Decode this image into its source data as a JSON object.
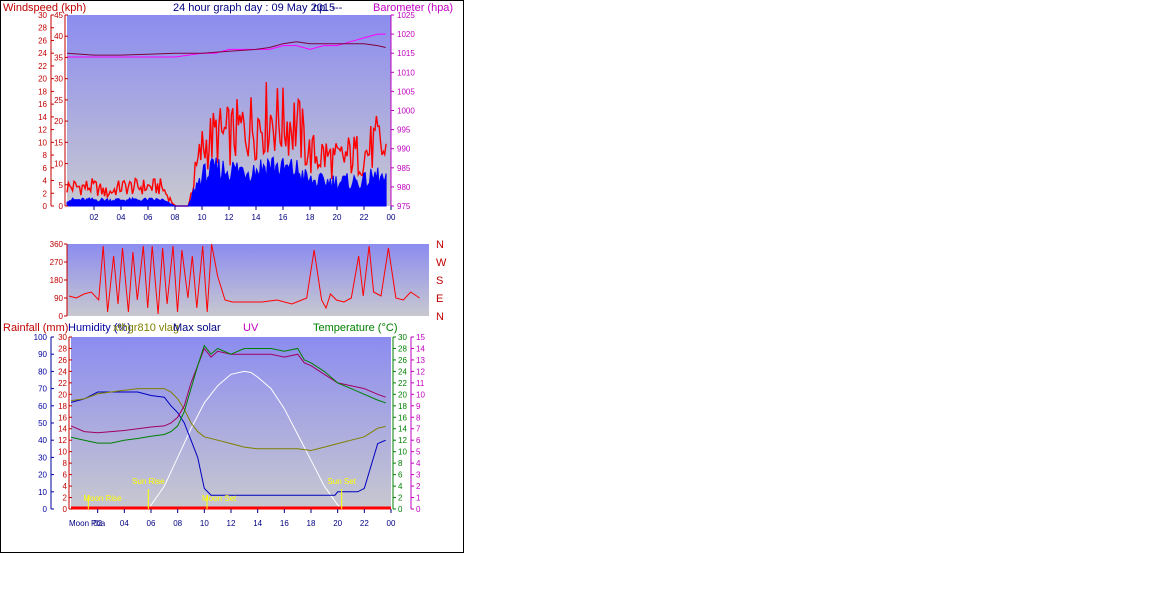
{
  "chart_data": [
    {
      "type": "line",
      "title": "24 hour graph day : 09 May 2015",
      "title_suffix": "np. ---",
      "left_axis_label": "Windspeed (kph)",
      "right_axis_label": "Barometer (hpa)",
      "windspeed_inner_ticks": [
        "30",
        "28",
        "26",
        "24",
        "22",
        "20",
        "18",
        "16",
        "14",
        "12",
        "10",
        "8",
        "6",
        "4",
        "2",
        "0"
      ],
      "windspeed_outer_ticks": [
        "45",
        "40",
        "35",
        "30",
        "25",
        "20",
        "15",
        "10",
        "5",
        "0"
      ],
      "barometer_ticks": [
        "1025",
        "1020",
        "1015",
        "1010",
        "1005",
        "1000",
        "995",
        "990",
        "985",
        "980",
        "975"
      ],
      "x_ticks": [
        "02",
        "04",
        "06",
        "08",
        "10",
        "12",
        "14",
        "16",
        "18",
        "20",
        "22",
        "00"
      ],
      "xlim": [
        0,
        24
      ],
      "ylim_windspeed": [
        0,
        30
      ],
      "ylim_barometer": [
        975,
        1025
      ],
      "colors": {
        "gust": "#ff0000",
        "average": "#0000ff",
        "barometer": "#ff00ff",
        "barometer_trend": "#800040",
        "windaxis": "#c00000",
        "baroaxis": "#c000c0",
        "bg_top": "#8c8cf0",
        "bg_bottom": "#c8c8c8"
      },
      "series": [
        {
          "name": "Gust",
          "values_x": [
            0,
            1,
            2,
            3,
            4,
            5,
            6,
            7,
            8,
            9,
            9.5,
            10,
            11,
            12,
            13,
            14,
            15,
            16,
            17,
            18,
            19,
            20,
            21,
            22,
            23,
            23.6
          ],
          "values": [
            3,
            3,
            3,
            2,
            3,
            3,
            3,
            3,
            0,
            0,
            5,
            9,
            11,
            11,
            12,
            13,
            14,
            13,
            13,
            8,
            8,
            7,
            8,
            8,
            10,
            8
          ]
        },
        {
          "name": "Average",
          "values_x": [
            0,
            1,
            2,
            3,
            4,
            5,
            6,
            7,
            8,
            9,
            9.5,
            10,
            11,
            12,
            13,
            14,
            15,
            16,
            17,
            18,
            19,
            20,
            21,
            22,
            23,
            23.6
          ],
          "values": [
            1,
            1,
            1,
            1,
            1,
            1,
            1,
            1,
            0,
            0,
            3,
            5,
            6,
            6,
            6,
            6,
            7,
            6,
            6,
            4,
            4,
            4,
            4,
            4,
            5,
            4
          ]
        },
        {
          "name": "Barometer",
          "values_x": [
            0,
            2,
            4,
            6,
            8,
            10,
            11,
            12,
            13,
            14,
            15,
            16,
            17,
            18,
            19,
            20,
            21,
            22,
            23,
            23.6
          ],
          "values": [
            1014,
            1014,
            1014,
            1014,
            1014,
            1015,
            1015,
            1016,
            1016,
            1016,
            1016,
            1017,
            1017,
            1016,
            1017,
            1017,
            1018,
            1019,
            1020,
            1020
          ]
        },
        {
          "name": "Barometer trend",
          "values_x": [
            0,
            2,
            4,
            6,
            8,
            10,
            12,
            14,
            15,
            16,
            17,
            18,
            19,
            20,
            21,
            22,
            23,
            23.6
          ],
          "values": [
            1015,
            1014.5,
            1014.5,
            1014.7,
            1015,
            1015,
            1015.5,
            1016,
            1016.5,
            1017.5,
            1018,
            1017.5,
            1017.5,
            1017.5,
            1017.5,
            1017.5,
            1017,
            1016.5
          ]
        }
      ]
    },
    {
      "type": "line",
      "y_ticks": [
        "360",
        "270",
        "180",
        "90",
        "0"
      ],
      "compass_labels": [
        "N",
        "W",
        "S",
        "E",
        "N"
      ],
      "ylim": [
        0,
        360
      ],
      "xlim": [
        0,
        24
      ],
      "colors": {
        "direction": "#ff0000",
        "bg_top": "#8c8cf0",
        "bg_bottom": "#c8c8c8"
      },
      "series": [
        {
          "name": "Wind direction",
          "values_x": [
            0,
            0.5,
            1,
            1.5,
            2,
            2.3,
            2.6,
            3,
            3.3,
            3.6,
            4,
            4.3,
            4.6,
            5,
            5.3,
            5.6,
            6,
            6.3,
            6.6,
            7,
            7.3,
            7.6,
            8,
            8.3,
            8.6,
            9,
            9.3,
            9.6,
            10,
            10.5,
            11,
            12,
            13,
            14,
            15,
            16,
            16.5,
            17,
            17.3,
            17.6,
            18,
            18.5,
            19,
            19.5,
            19.8,
            20.2,
            20.5,
            21,
            21.5,
            22,
            22.5,
            23,
            23.6
          ],
          "values": [
            100,
            90,
            110,
            120,
            80,
            350,
            20,
            300,
            60,
            340,
            20,
            320,
            80,
            350,
            40,
            350,
            10,
            340,
            60,
            350,
            20,
            330,
            90,
            300,
            40,
            350,
            20,
            360,
            200,
            80,
            70,
            70,
            70,
            80,
            60,
            90,
            330,
            80,
            40,
            110,
            80,
            70,
            90,
            300,
            100,
            350,
            120,
            100,
            340,
            90,
            80,
            120,
            90
          ]
        }
      ]
    },
    {
      "type": "line",
      "labels": {
        "rainfall": "Rainfall (mm)",
        "humidity": "Humidity (%)",
        "extra": "xthgr810 vlag",
        "solar": "Max solar",
        "uv": "UV",
        "temperature": "Temperature (°C)"
      },
      "rainfall_ticks": [
        "30",
        "28",
        "26",
        "24",
        "22",
        "20",
        "18",
        "16",
        "14",
        "12",
        "10",
        "8",
        "6",
        "4",
        "2",
        "0"
      ],
      "humidity_ticks": [
        "100",
        "90",
        "80",
        "70",
        "60",
        "50",
        "40",
        "30",
        "20",
        "10",
        "0"
      ],
      "temperature_ticks": [
        "30",
        "28",
        "26",
        "24",
        "22",
        "20",
        "18",
        "16",
        "14",
        "12",
        "10",
        "8",
        "6",
        "4",
        "2",
        "0"
      ],
      "uv_ticks": [
        "15",
        "14",
        "13",
        "12",
        "11",
        "10",
        "9",
        "8",
        "7",
        "6",
        "5",
        "4",
        "3",
        "2",
        "1",
        "0"
      ],
      "x_ticks": [
        "02",
        "04",
        "06",
        "08",
        "10",
        "12",
        "14",
        "16",
        "18",
        "20",
        "22",
        "00"
      ],
      "markers": [
        {
          "label": "Moon Rise",
          "x": 1.3
        },
        {
          "label": "Moon Set",
          "x": 10.2
        },
        {
          "label": "Sun Rise",
          "x": 5.8
        },
        {
          "label": "Sun Set",
          "x": 20.3
        }
      ],
      "moon_row_labels": [
        "Moon",
        "Pha"
      ],
      "xlim": [
        0,
        24
      ],
      "ylim_temperature": [
        0,
        30
      ],
      "ylim_humidity": [
        0,
        100
      ],
      "colors": {
        "humidity": "#0000c0",
        "extra": "#808000",
        "temperature": "#008000",
        "second_temp": "#a00060",
        "solar": "#ffffff",
        "rain": "#ff0000",
        "marker": "#ffff00",
        "humidityaxis": "#0000a0",
        "rainaxis": "#c00000",
        "tempaxis": "#008000",
        "uvaxis": "#c000c0"
      },
      "series": [
        {
          "name": "Humidity",
          "values_x": [
            0,
            1,
            2,
            3,
            4,
            5,
            6,
            7,
            7.5,
            8,
            8.5,
            9,
            9.5,
            10,
            10.5,
            11,
            12,
            13,
            14,
            15,
            16,
            17,
            18,
            19,
            19.8,
            20,
            21,
            21.5,
            22,
            23,
            23.6
          ],
          "values": [
            62,
            64,
            68,
            68,
            68,
            68,
            66,
            65,
            60,
            56,
            50,
            40,
            30,
            12,
            8,
            8,
            8,
            8,
            8,
            8,
            8,
            8,
            8,
            8,
            8,
            10,
            10,
            10,
            12,
            38,
            40
          ]
        },
        {
          "name": "xthgr810 vlag",
          "values_x": [
            0,
            1,
            2,
            3,
            4,
            5,
            6,
            7,
            7.5,
            8,
            8.5,
            9,
            9.5,
            10,
            11,
            12,
            13,
            14,
            15,
            16,
            17,
            18,
            19,
            20,
            21,
            22,
            23,
            23.6
          ],
          "values": [
            63,
            64,
            67,
            68,
            69,
            70,
            70,
            70,
            68,
            64,
            58,
            50,
            45,
            42,
            40,
            38,
            36,
            35,
            35,
            35,
            35,
            34,
            36,
            38,
            40,
            42,
            47,
            48
          ]
        },
        {
          "name": "Temperature",
          "values_x": [
            0,
            1,
            2,
            3,
            4,
            5,
            6,
            7,
            7.5,
            8,
            8.5,
            9,
            9.5,
            10,
            10.5,
            11,
            12,
            13,
            14,
            15,
            16,
            17,
            17.5,
            18,
            19,
            20,
            21,
            22,
            23,
            23.6
          ],
          "values": [
            12.5,
            12,
            11.5,
            11.5,
            12,
            12.3,
            12.7,
            13,
            13.5,
            14.5,
            17,
            21,
            25,
            28.5,
            27,
            28,
            27,
            28,
            28,
            28,
            27.5,
            28,
            26,
            25.5,
            24,
            22,
            21,
            20,
            19,
            18.5
          ]
        },
        {
          "name": "Second temperature",
          "values_x": [
            0,
            1,
            2,
            3,
            4,
            5,
            6,
            7,
            7.5,
            8,
            8.5,
            9,
            9.5,
            10,
            10.5,
            11,
            12,
            13,
            14,
            15,
            16,
            17,
            17.5,
            18,
            19,
            20,
            21,
            22,
            23,
            23.6
          ],
          "values": [
            14.5,
            13.5,
            13.3,
            13.5,
            13.7,
            14,
            14.3,
            14.5,
            15,
            16,
            18,
            22,
            25,
            28,
            26.5,
            27.5,
            27,
            27,
            27,
            27,
            26.5,
            27,
            25.5,
            25,
            23.5,
            22,
            21.5,
            21,
            20,
            19.5
          ]
        },
        {
          "name": "Max solar",
          "values_x": [
            5.8,
            7,
            8,
            9,
            10,
            11,
            12,
            13,
            13.5,
            14,
            15,
            16,
            17,
            18,
            19,
            20,
            20.3
          ],
          "values": [
            0,
            4,
            9,
            14,
            18.5,
            21.5,
            23.5,
            24,
            23.8,
            23,
            21,
            17.5,
            13,
            8.5,
            4,
            0.7,
            0
          ]
        }
      ]
    }
  ]
}
